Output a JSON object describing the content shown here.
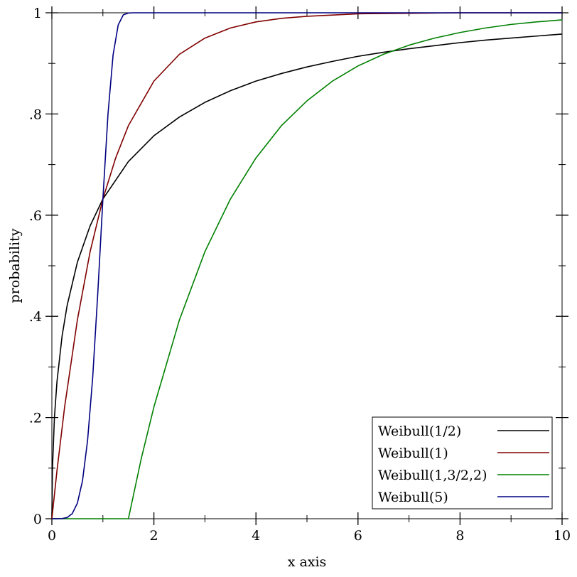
{
  "chart_data": {
    "type": "line",
    "title": "",
    "xlabel": "x axis",
    "ylabel": "probability",
    "xlim": [
      0,
      10
    ],
    "ylim": [
      0,
      1
    ],
    "grid": false,
    "legend_position": "bottom-right",
    "x_ticks": [
      {
        "value": 0,
        "label": "0"
      },
      {
        "value": 2,
        "label": "2"
      },
      {
        "value": 4,
        "label": "4"
      },
      {
        "value": 6,
        "label": "6"
      },
      {
        "value": 8,
        "label": "8"
      },
      {
        "value": 10,
        "label": "10"
      }
    ],
    "y_ticks": [
      {
        "value": 0,
        "label": "0"
      },
      {
        "value": 0.2,
        "label": ".2"
      },
      {
        "value": 0.4,
        "label": ".4"
      },
      {
        "value": 0.6,
        "label": ".6"
      },
      {
        "value": 0.8,
        "label": ".8"
      },
      {
        "value": 1,
        "label": "1"
      }
    ],
    "series": [
      {
        "name": "Weibull(1/2)",
        "color": "#000000",
        "x": [
          0,
          0.01,
          0.05,
          0.1,
          0.2,
          0.3,
          0.5,
          0.75,
          1,
          1.5,
          2,
          2.5,
          3,
          3.5,
          4,
          4.5,
          5,
          5.5,
          6,
          6.5,
          7,
          7.5,
          8,
          8.5,
          9,
          9.5,
          10
        ],
        "y": [
          0,
          0.095,
          0.2,
          0.271,
          0.361,
          0.422,
          0.507,
          0.579,
          0.632,
          0.706,
          0.757,
          0.794,
          0.823,
          0.846,
          0.865,
          0.88,
          0.893,
          0.904,
          0.914,
          0.922,
          0.929,
          0.935,
          0.941,
          0.946,
          0.95,
          0.954,
          0.958
        ]
      },
      {
        "name": "Weibull(1)",
        "color": "#800000",
        "x": [
          0,
          0.1,
          0.25,
          0.5,
          0.75,
          1,
          1.25,
          1.5,
          2,
          2.5,
          3,
          3.5,
          4,
          4.5,
          5,
          6,
          7,
          8,
          9,
          10
        ],
        "y": [
          0,
          0.095,
          0.221,
          0.393,
          0.528,
          0.632,
          0.713,
          0.777,
          0.865,
          0.918,
          0.95,
          0.97,
          0.982,
          0.989,
          0.993,
          0.998,
          0.999,
          1,
          1,
          1
        ]
      },
      {
        "name": "Weibull(1,3/2,2)",
        "color": "#008000",
        "x": [
          0,
          1.5,
          1.75,
          2,
          2.5,
          3,
          3.5,
          4,
          4.5,
          5,
          5.5,
          6,
          6.5,
          7,
          7.5,
          8,
          8.5,
          9,
          9.5,
          10
        ],
        "y": [
          0,
          0,
          0.118,
          0.221,
          0.393,
          0.528,
          0.632,
          0.713,
          0.777,
          0.826,
          0.865,
          0.895,
          0.918,
          0.936,
          0.95,
          0.961,
          0.97,
          0.977,
          0.982,
          0.986
        ]
      },
      {
        "name": "Weibull(5)",
        "color": "#000080",
        "x": [
          0,
          0.2,
          0.3,
          0.4,
          0.5,
          0.6,
          0.7,
          0.8,
          0.9,
          1,
          1.1,
          1.2,
          1.3,
          1.4,
          1.5,
          1.6,
          2,
          3,
          5,
          10
        ],
        "y": [
          0,
          0.0003,
          0.0024,
          0.0102,
          0.0308,
          0.0748,
          0.155,
          0.279,
          0.446,
          0.632,
          0.8,
          0.917,
          0.976,
          0.996,
          0.9995,
          1,
          1,
          1,
          1,
          1
        ]
      }
    ]
  }
}
